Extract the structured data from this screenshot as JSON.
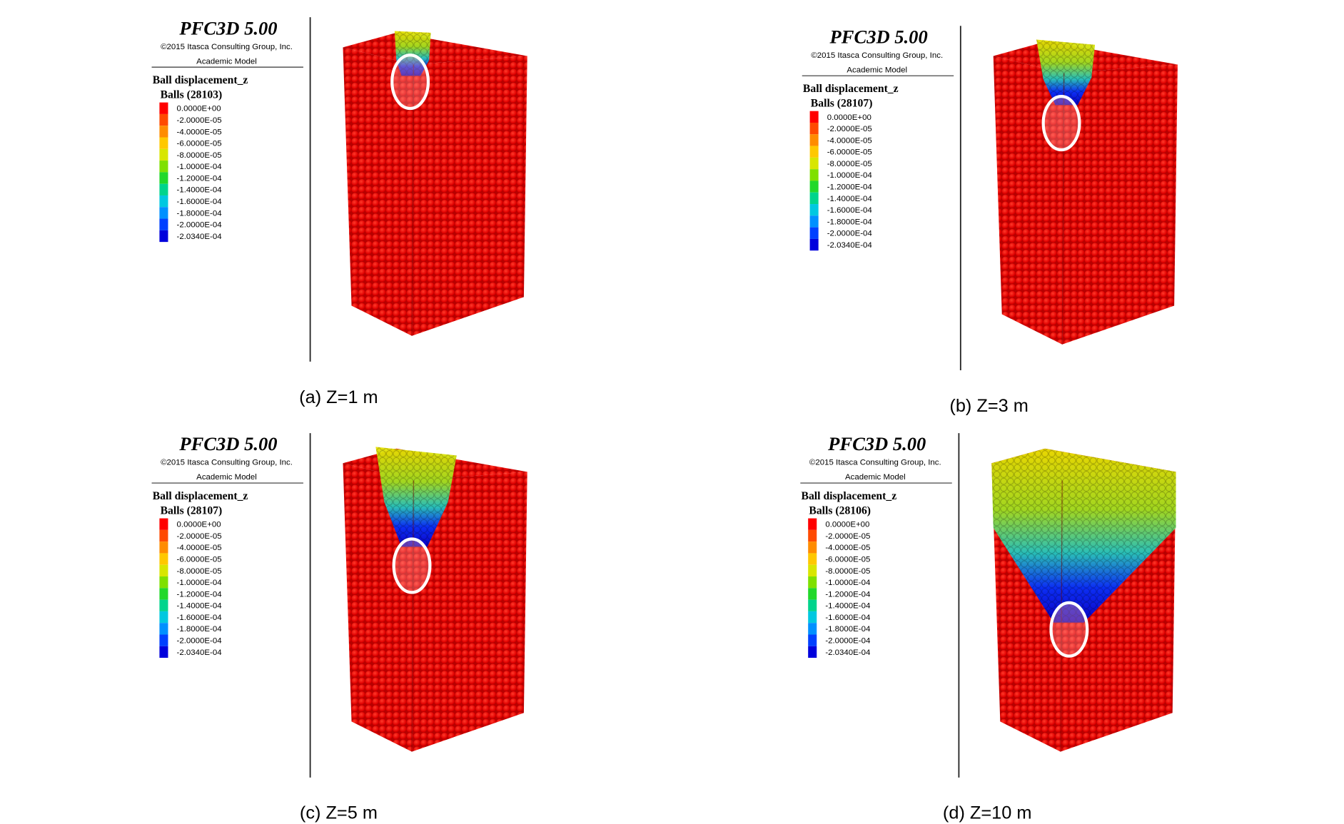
{
  "legend_colors": [
    "#ff0000",
    "#ff4a00",
    "#ff8c00",
    "#ffc800",
    "#d8e600",
    "#7fe000",
    "#22d82a",
    "#00d48c",
    "#00c8e0",
    "#0090ff",
    "#0040ff",
    "#0000dc"
  ],
  "panels": [
    {
      "title": "PFC3D 5.00",
      "copyright": "©2015 Itasca Consulting Group, Inc.",
      "model": "Academic Model",
      "legend_title": "Ball displacement_z",
      "count": "Balls (28103)",
      "legend": [
        "0.0000E+00",
        "-2.0000E-05",
        "-4.0000E-05",
        "-6.0000E-05",
        "-8.0000E-05",
        "-1.0000E-04",
        "-1.2000E-04",
        "-1.4000E-04",
        "-1.6000E-04",
        "-1.8000E-04",
        "-2.0000E-04",
        "-2.0340E-04"
      ],
      "caption": "(a)  Z=1  m"
    },
    {
      "title": "PFC3D 5.00",
      "copyright": "©2015 Itasca Consulting Group, Inc.",
      "model": "Academic Model",
      "legend_title": "Ball displacement_z",
      "count": "Balls (28107)",
      "legend": [
        "0.0000E+00",
        "-2.0000E-05",
        "-4.0000E-05",
        "-6.0000E-05",
        "-8.0000E-05",
        "-1.0000E-04",
        "-1.2000E-04",
        "-1.4000E-04",
        "-1.6000E-04",
        "-1.8000E-04",
        "-2.0000E-04",
        "-2.0340E-04"
      ],
      "caption": "(b)  Z=3  m"
    },
    {
      "title": "PFC3D 5.00",
      "copyright": "©2015 Itasca Consulting Group, Inc.",
      "model": "Academic Model",
      "legend_title": "Ball displacement_z",
      "count": "Balls (28107)",
      "legend": [
        "0.0000E+00",
        "-2.0000E-05",
        "-4.0000E-05",
        "-6.0000E-05",
        "-8.0000E-05",
        "-1.0000E-04",
        "-1.2000E-04",
        "-1.4000E-04",
        "-1.6000E-04",
        "-1.8000E-04",
        "-2.0000E-04",
        "-2.0340E-04"
      ],
      "caption": "(c)  Z=5  m"
    },
    {
      "title": "PFC3D 5.00",
      "copyright": "©2015 Itasca Consulting Group, Inc.",
      "model": "Academic Model",
      "legend_title": "Ball displacement_z",
      "count": "Balls (28106)",
      "legend": [
        "0.0000E+00",
        "-2.0000E-05",
        "-4.0000E-05",
        "-6.0000E-05",
        "-8.0000E-05",
        "-1.0000E-04",
        "-1.2000E-04",
        "-1.4000E-04",
        "-1.6000E-04",
        "-1.8000E-04",
        "-2.0000E-04",
        "-2.0340E-04"
      ],
      "caption": "(d)  Z=10  m"
    }
  ]
}
